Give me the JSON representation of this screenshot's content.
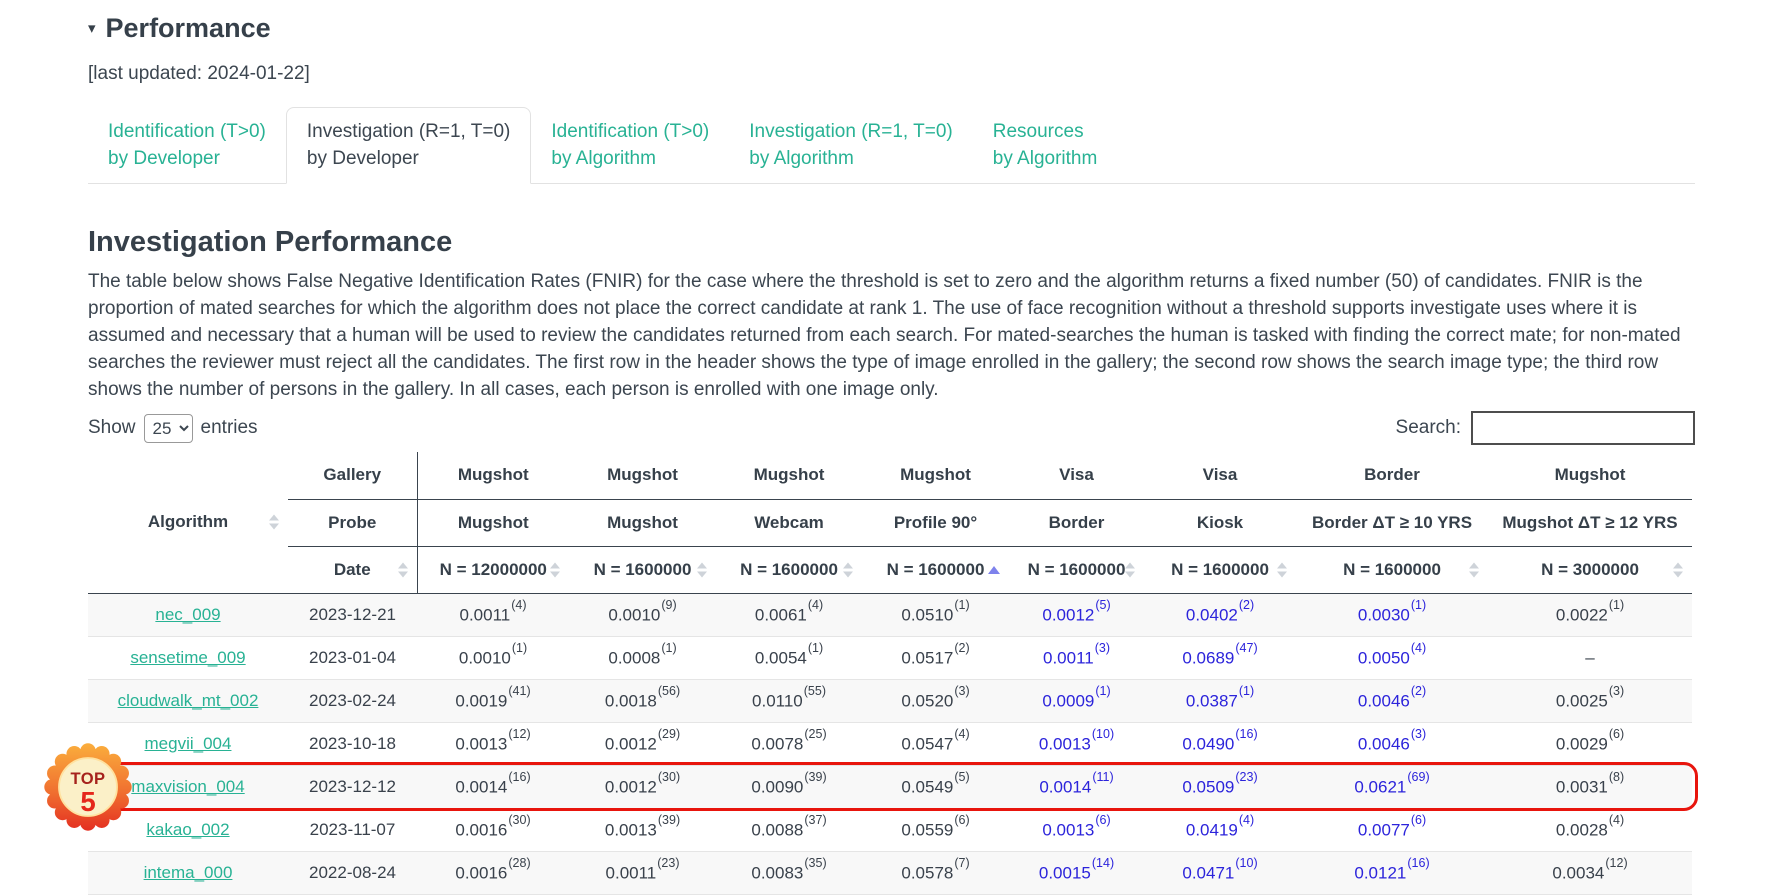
{
  "page": {
    "caret": "▾",
    "title": "Performance",
    "last_updated": "[last updated: 2024-01-22]"
  },
  "tabs": [
    {
      "id": "identification-by-developer",
      "line1": "Identification (T>0)",
      "line2": "by Developer",
      "active": false
    },
    {
      "id": "investigation-by-developer",
      "line1": "Investigation (R=1, T=0)",
      "line2": "by Developer",
      "active": true
    },
    {
      "id": "identification-by-algorithm",
      "line1": "Identification (T>0)",
      "line2": "by Algorithm",
      "active": false
    },
    {
      "id": "investigation-by-algorithm",
      "line1": "Investigation (R=1, T=0)",
      "line2": "by Algorithm",
      "active": false
    },
    {
      "id": "resources-by-algorithm",
      "line1": "Resources",
      "line2": "by Algorithm",
      "active": false
    }
  ],
  "section": {
    "title": "Investigation Performance",
    "description": "The table below shows False Negative Identification Rates (FNIR) for the case where the threshold is set to zero and the algorithm returns a fixed number (50) of candidates. FNIR is the proportion of mated searches for which the algorithm does not place the correct candidate at rank 1. The use of face recognition without a threshold supports investigate uses where it is assumed and necessary that a human will be used to review the candidates returned from each search. For mated-searches the human is tasked with finding the correct mate; for non-mated searches the reviewer must reject all the candidates. The first row in the header shows the type of image enrolled in the gallery; the second row shows the search image type; the third row shows the number of persons in the gallery. In all cases, each person is enrolled with one image only."
  },
  "controls": {
    "show_label": "Show",
    "page_size": "25",
    "entries_label": "entries",
    "search_label": "Search:",
    "search_value": ""
  },
  "table": {
    "corner_header": "Algorithm",
    "row_headers": [
      "Gallery",
      "Probe",
      "Date"
    ],
    "columns": [
      {
        "gallery": "Mugshot",
        "probe": "Mugshot",
        "n": "N = 12000000",
        "link": false,
        "sorted": false
      },
      {
        "gallery": "Mugshot",
        "probe": "Mugshot",
        "n": "N = 1600000",
        "link": false,
        "sorted": false
      },
      {
        "gallery": "Mugshot",
        "probe": "Webcam",
        "n": "N = 1600000",
        "link": false,
        "sorted": false
      },
      {
        "gallery": "Mugshot",
        "probe": "Profile 90°",
        "n": "N = 1600000",
        "link": false,
        "sorted": true
      },
      {
        "gallery": "Visa",
        "probe": "Border",
        "n": "N = 1600000",
        "link": true,
        "sorted": false
      },
      {
        "gallery": "Visa",
        "probe": "Kiosk",
        "n": "N = 1600000",
        "link": true,
        "sorted": false
      },
      {
        "gallery": "Border",
        "probe": "Border ΔT ≥ 10 YRS",
        "n": "N = 1600000",
        "link": true,
        "sorted": false
      },
      {
        "gallery": "Mugshot",
        "probe": "Mugshot ΔT ≥ 12 YRS",
        "n": "N = 3000000",
        "link": false,
        "sorted": false
      }
    ],
    "rows": [
      {
        "algorithm": "nec_009",
        "date": "2023-12-21",
        "highlighted": false,
        "values": [
          {
            "v": "0.0011",
            "r": "4"
          },
          {
            "v": "0.0010",
            "r": "9"
          },
          {
            "v": "0.0061",
            "r": "4"
          },
          {
            "v": "0.0510",
            "r": "1"
          },
          {
            "v": "0.0012",
            "r": "5"
          },
          {
            "v": "0.0402",
            "r": "2"
          },
          {
            "v": "0.0030",
            "r": "1"
          },
          {
            "v": "0.0022",
            "r": "1"
          }
        ]
      },
      {
        "algorithm": "sensetime_009",
        "date": "2023-01-04",
        "highlighted": false,
        "values": [
          {
            "v": "0.0010",
            "r": "1"
          },
          {
            "v": "0.0008",
            "r": "1"
          },
          {
            "v": "0.0054",
            "r": "1"
          },
          {
            "v": "0.0517",
            "r": "2"
          },
          {
            "v": "0.0011",
            "r": "3"
          },
          {
            "v": "0.0689",
            "r": "47"
          },
          {
            "v": "0.0050",
            "r": "4"
          },
          {
            "v": "–",
            "r": null
          }
        ]
      },
      {
        "algorithm": "cloudwalk_mt_002",
        "date": "2023-02-24",
        "highlighted": false,
        "values": [
          {
            "v": "0.0019",
            "r": "41"
          },
          {
            "v": "0.0018",
            "r": "56"
          },
          {
            "v": "0.0110",
            "r": "55"
          },
          {
            "v": "0.0520",
            "r": "3"
          },
          {
            "v": "0.0009",
            "r": "1"
          },
          {
            "v": "0.0387",
            "r": "1"
          },
          {
            "v": "0.0046",
            "r": "2"
          },
          {
            "v": "0.0025",
            "r": "3"
          }
        ]
      },
      {
        "algorithm": "megvii_004",
        "date": "2023-10-18",
        "highlighted": false,
        "values": [
          {
            "v": "0.0013",
            "r": "12"
          },
          {
            "v": "0.0012",
            "r": "29"
          },
          {
            "v": "0.0078",
            "r": "25"
          },
          {
            "v": "0.0547",
            "r": "4"
          },
          {
            "v": "0.0013",
            "r": "10"
          },
          {
            "v": "0.0490",
            "r": "16"
          },
          {
            "v": "0.0046",
            "r": "3"
          },
          {
            "v": "0.0029",
            "r": "6"
          }
        ]
      },
      {
        "algorithm": "maxvision_004",
        "date": "2023-12-12",
        "highlighted": true,
        "values": [
          {
            "v": "0.0014",
            "r": "16"
          },
          {
            "v": "0.0012",
            "r": "30"
          },
          {
            "v": "0.0090",
            "r": "39"
          },
          {
            "v": "0.0549",
            "r": "5"
          },
          {
            "v": "0.0014",
            "r": "11"
          },
          {
            "v": "0.0509",
            "r": "23"
          },
          {
            "v": "0.0621",
            "r": "69"
          },
          {
            "v": "0.0031",
            "r": "8"
          }
        ]
      },
      {
        "algorithm": "kakao_002",
        "date": "2023-11-07",
        "highlighted": false,
        "values": [
          {
            "v": "0.0016",
            "r": "30"
          },
          {
            "v": "0.0013",
            "r": "39"
          },
          {
            "v": "0.0088",
            "r": "37"
          },
          {
            "v": "0.0559",
            "r": "6"
          },
          {
            "v": "0.0013",
            "r": "6"
          },
          {
            "v": "0.0419",
            "r": "4"
          },
          {
            "v": "0.0077",
            "r": "6"
          },
          {
            "v": "0.0028",
            "r": "4"
          }
        ]
      },
      {
        "algorithm": "intema_000",
        "date": "2022-08-24",
        "highlighted": false,
        "values": [
          {
            "v": "0.0016",
            "r": "28"
          },
          {
            "v": "0.0011",
            "r": "23"
          },
          {
            "v": "0.0083",
            "r": "35"
          },
          {
            "v": "0.0578",
            "r": "7"
          },
          {
            "v": "0.0015",
            "r": "14"
          },
          {
            "v": "0.0471",
            "r": "10"
          },
          {
            "v": "0.0121",
            "r": "16"
          },
          {
            "v": "0.0034",
            "r": "12"
          }
        ]
      }
    ]
  },
  "badge": {
    "line1": "TOP",
    "line2": "5"
  },
  "colors": {
    "teal_link": "#28b294",
    "blue_link": "#2c24db",
    "dark_text": "#36404a",
    "highlight_red": "#e8150d",
    "sorted_arrow": "#7e82ec",
    "badge_orange": "#f9a33a",
    "badge_red": "#e83424",
    "badge_inner": "#fbf0c8"
  }
}
